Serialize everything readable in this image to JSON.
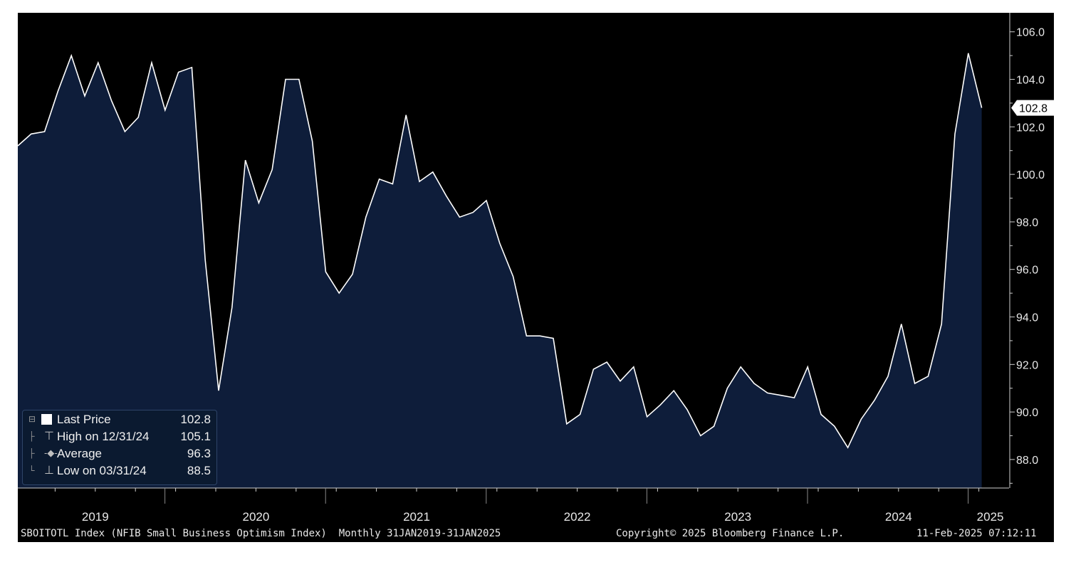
{
  "chart_data": {
    "type": "area",
    "x_start": "2019-01",
    "frequency": "monthly",
    "values": [
      101.2,
      101.7,
      101.8,
      103.5,
      105.0,
      103.3,
      104.7,
      103.1,
      101.8,
      102.4,
      104.7,
      102.7,
      104.3,
      104.5,
      96.4,
      90.9,
      94.4,
      100.6,
      98.8,
      100.2,
      104.0,
      104.0,
      101.4,
      95.9,
      95.0,
      95.8,
      98.2,
      99.8,
      99.6,
      102.5,
      99.7,
      100.1,
      99.1,
      98.2,
      98.4,
      98.9,
      97.1,
      95.7,
      93.2,
      93.2,
      93.1,
      89.5,
      89.9,
      91.8,
      92.1,
      91.3,
      91.9,
      89.8,
      90.3,
      90.9,
      90.1,
      89.0,
      89.4,
      91.0,
      91.9,
      91.2,
      90.8,
      90.7,
      90.6,
      91.9,
      89.9,
      89.4,
      88.5,
      89.7,
      90.5,
      91.5,
      93.7,
      91.2,
      91.5,
      93.7,
      101.7,
      105.1,
      102.8
    ],
    "ylim": [
      86.8,
      106.8
    ],
    "y_ticks": [
      "106.0",
      "104.0",
      "102.0",
      "100.0",
      "98.0",
      "96.0",
      "94.0",
      "92.0",
      "90.0",
      "88.0"
    ],
    "x_year_labels": [
      "2019",
      "2020",
      "2021",
      "2022",
      "2023",
      "2024",
      "2025"
    ],
    "last_value_label": "102.8",
    "grid": false,
    "legend_placement": "bottom-left",
    "colors": {
      "background": "#000000",
      "fill": "#0e1d3a",
      "line": "#ffffff",
      "axis": "#cfcfcf"
    }
  },
  "legend": {
    "rows": [
      {
        "label": "Last Price",
        "value": "102.8"
      },
      {
        "label": "High on 12/31/24",
        "value": "105.1"
      },
      {
        "label": "Average",
        "value": "96.3"
      },
      {
        "label": "Low on 03/31/24",
        "value": "88.5"
      }
    ]
  },
  "footer": {
    "description": "SBOITOTL Index (NFIB Small Business Optimism Index)  Monthly 31JAN2019-31JAN2025",
    "copyright": "Copyright© 2025 Bloomberg Finance L.P.",
    "timestamp": "11-Feb-2025 07:12:11"
  }
}
